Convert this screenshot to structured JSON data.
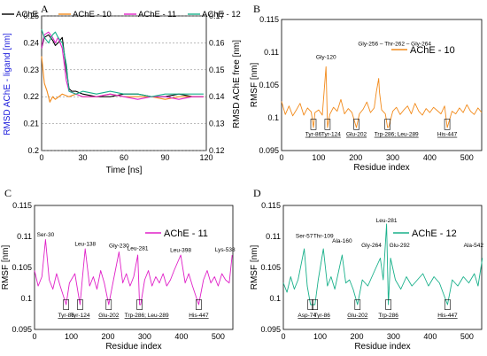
{
  "chart_data": [
    {
      "panel": "A",
      "type": "line",
      "xlabel": "Time [ns]",
      "ylabel": "RMSD AChE - ligand [nm]",
      "ylabel_right": "RMSD AChE free [nm]",
      "xlim": [
        0,
        120
      ],
      "ylim": [
        0.2,
        0.25
      ],
      "ylim_right": [
        0.12,
        0.17
      ],
      "xticks": [
        "0",
        "30",
        "60",
        "90",
        "120"
      ],
      "yticks": [
        "0.2",
        "0.21",
        "0.22",
        "0.23",
        "0.24",
        "0.25"
      ],
      "yticks_right": [
        "0.12",
        "0.13",
        "0.14",
        "0.15",
        "0.16",
        "0.17"
      ],
      "legend": [
        "AChE",
        "AChE - 10",
        "AChE - 11",
        "AChE - 12"
      ],
      "series": [
        {
          "name": "AChE",
          "color": "#000000",
          "axis": "right",
          "x": [
            0,
            2,
            5,
            8,
            10,
            12,
            15,
            18,
            20,
            22,
            25,
            30,
            40,
            50,
            60,
            70,
            80,
            90,
            100,
            110,
            118
          ],
          "y": [
            0.158,
            0.162,
            0.163,
            0.161,
            0.159,
            0.16,
            0.162,
            0.15,
            0.143,
            0.142,
            0.142,
            0.141,
            0.14,
            0.14,
            0.141,
            0.141,
            0.14,
            0.14,
            0.141,
            0.14,
            0.14
          ]
        },
        {
          "name": "AChE - 10",
          "color": "#f28a1a",
          "axis": "left",
          "x": [
            0,
            2,
            4,
            6,
            8,
            10,
            15,
            20,
            25,
            30,
            40,
            50,
            60,
            70,
            80,
            90,
            100,
            110,
            118
          ],
          "y": [
            0.235,
            0.225,
            0.222,
            0.218,
            0.22,
            0.219,
            0.221,
            0.22,
            0.221,
            0.22,
            0.22,
            0.221,
            0.22,
            0.22,
            0.22,
            0.219,
            0.22,
            0.22,
            0.22
          ]
        },
        {
          "name": "AChE - 11",
          "color": "#e020c8",
          "axis": "left",
          "x": [
            0,
            2,
            5,
            8,
            10,
            12,
            15,
            18,
            20,
            25,
            30,
            40,
            50,
            60,
            70,
            80,
            90,
            100,
            110,
            118
          ],
          "y": [
            0.238,
            0.243,
            0.244,
            0.242,
            0.24,
            0.242,
            0.238,
            0.226,
            0.222,
            0.221,
            0.22,
            0.22,
            0.221,
            0.22,
            0.219,
            0.22,
            0.22,
            0.219,
            0.22,
            0.22
          ]
        },
        {
          "name": "AChE - 12",
          "color": "#18b08a",
          "axis": "left",
          "x": [
            0,
            2,
            5,
            8,
            10,
            12,
            15,
            18,
            20,
            25,
            30,
            40,
            50,
            60,
            70,
            80,
            90,
            100,
            110,
            118
          ],
          "y": [
            0.245,
            0.242,
            0.24,
            0.243,
            0.244,
            0.242,
            0.24,
            0.232,
            0.222,
            0.221,
            0.222,
            0.221,
            0.222,
            0.221,
            0.221,
            0.22,
            0.221,
            0.221,
            0.221,
            0.221
          ]
        }
      ]
    },
    {
      "panel": "B",
      "type": "line",
      "legend": "AChE - 10",
      "color": "#f28a1a",
      "xlabel": "Residue index",
      "ylabel": "RMSF [nm]",
      "xlim": [
        0,
        540
      ],
      "ylim": [
        0.095,
        0.115
      ],
      "xticks": [
        "0",
        "100",
        "200",
        "300",
        "400",
        "500"
      ],
      "yticks": [
        "0.095",
        "0.1",
        "0.105",
        "0.11",
        "0.115"
      ],
      "x": [
        0,
        10,
        20,
        30,
        40,
        50,
        60,
        70,
        80,
        86,
        90,
        100,
        110,
        120,
        124,
        130,
        140,
        150,
        160,
        170,
        180,
        190,
        202,
        210,
        220,
        230,
        240,
        250,
        256,
        262,
        264,
        270,
        280,
        286,
        289,
        300,
        310,
        320,
        330,
        340,
        350,
        360,
        370,
        380,
        390,
        400,
        410,
        420,
        430,
        440,
        447,
        460,
        470,
        480,
        490,
        500,
        510,
        520,
        530,
        540
      ],
      "y": [
        0.1025,
        0.1005,
        0.1018,
        0.1003,
        0.1012,
        0.1022,
        0.1004,
        0.1015,
        0.1009,
        0.0985,
        0.1008,
        0.1012,
        0.1004,
        0.1078,
        0.0985,
        0.1005,
        0.1016,
        0.101,
        0.1028,
        0.1006,
        0.1014,
        0.1008,
        0.0985,
        0.1006,
        0.1013,
        0.1024,
        0.1008,
        0.1015,
        0.104,
        0.106,
        0.104,
        0.1012,
        0.1006,
        0.0985,
        0.0986,
        0.101,
        0.1016,
        0.1005,
        0.1012,
        0.1018,
        0.1006,
        0.1022,
        0.101,
        0.1004,
        0.1014,
        0.1008,
        0.1016,
        0.1011,
        0.1006,
        0.1018,
        0.0985,
        0.101,
        0.1006,
        0.1015,
        0.1008,
        0.102,
        0.101,
        0.1005,
        0.1015,
        0.1008
      ],
      "annotations": [
        "Gly-120",
        "Gly-256 – Thr-262 – Gly-264",
        "Tyr-86",
        "Tyr-124",
        "Glu-202",
        "Trp-286; Leu-289",
        "His-447"
      ]
    },
    {
      "panel": "C",
      "type": "line",
      "legend": "AChE - 11",
      "color": "#e020c8",
      "xlabel": "Residue index",
      "ylabel": "RMSF [nm]",
      "xlim": [
        0,
        540
      ],
      "ylim": [
        0.095,
        0.115
      ],
      "xticks": [
        "0",
        "100",
        "200",
        "300",
        "400",
        "500"
      ],
      "yticks": [
        "0.095",
        "0.1",
        "0.105",
        "0.11",
        "0.115"
      ],
      "x": [
        0,
        10,
        20,
        30,
        40,
        50,
        60,
        70,
        86,
        95,
        110,
        124,
        130,
        138,
        150,
        160,
        170,
        180,
        190,
        202,
        215,
        230,
        240,
        250,
        260,
        270,
        281,
        286,
        289,
        300,
        310,
        320,
        330,
        340,
        350,
        360,
        370,
        380,
        398,
        410,
        420,
        430,
        447,
        460,
        470,
        480,
        490,
        500,
        510,
        520,
        530,
        538
      ],
      "y": [
        0.1045,
        0.102,
        0.1035,
        0.1095,
        0.103,
        0.1015,
        0.104,
        0.102,
        0.099,
        0.1025,
        0.104,
        0.099,
        0.103,
        0.108,
        0.102,
        0.1035,
        0.1015,
        0.1045,
        0.1025,
        0.099,
        0.103,
        0.1075,
        0.1025,
        0.104,
        0.102,
        0.1035,
        0.107,
        0.099,
        0.099,
        0.103,
        0.1045,
        0.102,
        0.1035,
        0.1025,
        0.104,
        0.102,
        0.103,
        0.1045,
        0.107,
        0.1025,
        0.104,
        0.102,
        0.099,
        0.103,
        0.1045,
        0.1025,
        0.1035,
        0.102,
        0.104,
        0.103,
        0.1025,
        0.107
      ],
      "annotations": [
        "Ser-30",
        "Leu-138",
        "Gly-230",
        "Leu-281",
        "Leu-398",
        "Lys-538",
        "Tyr-86",
        "Tyr-124",
        "Glu-202",
        "Trp-286; Leu-289",
        "His-447"
      ]
    },
    {
      "panel": "D",
      "type": "line",
      "legend": "AChE - 12",
      "color": "#18b08a",
      "xlabel": "Residue index",
      "ylabel": "RMSF [nm]",
      "xlim": [
        0,
        540
      ],
      "ylim": [
        0.095,
        0.115
      ],
      "xticks": [
        "0",
        "100",
        "200",
        "300",
        "400",
        "500"
      ],
      "yticks": [
        "0.095",
        "0.1",
        "0.105",
        "0.11",
        "0.115"
      ],
      "x": [
        0,
        10,
        20,
        30,
        40,
        57,
        65,
        74,
        86,
        95,
        109,
        120,
        130,
        140,
        160,
        170,
        180,
        190,
        202,
        215,
        230,
        245,
        264,
        272,
        281,
        286,
        292,
        305,
        320,
        335,
        350,
        365,
        380,
        395,
        410,
        425,
        447,
        460,
        475,
        490,
        505,
        520,
        530,
        542
      ],
      "y": [
        0.1025,
        0.101,
        0.1035,
        0.1015,
        0.103,
        0.108,
        0.102,
        0.099,
        0.099,
        0.103,
        0.108,
        0.102,
        0.1035,
        0.1015,
        0.107,
        0.1025,
        0.103,
        0.1015,
        0.099,
        0.103,
        0.102,
        0.104,
        0.1065,
        0.103,
        0.112,
        0.099,
        0.1065,
        0.103,
        0.1015,
        0.1035,
        0.102,
        0.103,
        0.104,
        0.102,
        0.1035,
        0.1025,
        0.099,
        0.103,
        0.102,
        0.1035,
        0.1025,
        0.104,
        0.102,
        0.1065
      ],
      "annotations": [
        "Ser-57",
        "Thr-109",
        "Ala-160",
        "Leu-281",
        "Gly-264",
        "Glu-292",
        "Ala-542",
        "Asp-74",
        "Tyr-86",
        "Glu-202",
        "Trp-286",
        "His-447"
      ]
    }
  ]
}
